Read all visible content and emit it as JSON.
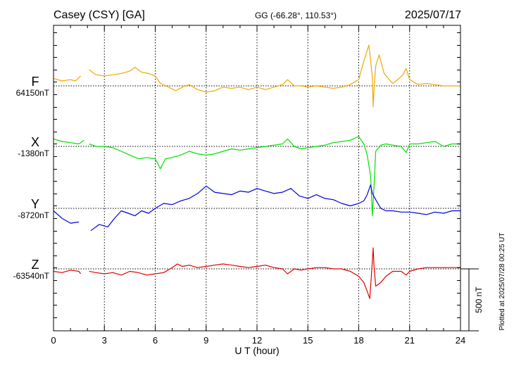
{
  "chart_data": {
    "type": "line",
    "station": "Casey (CSY)  [GA]",
    "coords": "GG (-66.28°, 110.53°)",
    "date": "2025/07/17",
    "xlabel": "U T (hour)",
    "xlim": [
      0,
      24
    ],
    "xticks": [
      "0",
      "3",
      "6",
      "9",
      "12",
      "15",
      "18",
      "21",
      "24"
    ],
    "plotted_note": "Plotted at 2025/07/28 00:25 UT",
    "scale_label": "500 nT",
    "scale_nT": 500,
    "series": [
      {
        "name": "F",
        "baseline_label": "64150nT",
        "baseline_nT": 64150,
        "color": "#f0a800",
        "points": [
          [
            0,
            64210
          ],
          [
            0.5,
            64190
          ],
          [
            1.0,
            64200
          ],
          [
            1.3,
            64190
          ],
          [
            1.6,
            64230
          ],
          null,
          [
            2.1,
            64280
          ],
          [
            2.5,
            64240
          ],
          [
            3.0,
            64230
          ],
          [
            3.5,
            64240
          ],
          [
            4.0,
            64250
          ],
          [
            4.5,
            64270
          ],
          [
            4.8,
            64300
          ],
          [
            5.2,
            64260
          ],
          [
            5.6,
            64250
          ],
          [
            6.0,
            64230
          ],
          [
            6.3,
            64170
          ],
          [
            6.8,
            64140
          ],
          [
            7.2,
            64110
          ],
          [
            7.6,
            64140
          ],
          [
            8.0,
            64160
          ],
          [
            8.5,
            64120
          ],
          [
            9.0,
            64100
          ],
          [
            9.5,
            64110
          ],
          [
            10.0,
            64140
          ],
          [
            10.5,
            64130
          ],
          [
            11.0,
            64140
          ],
          [
            11.5,
            64120
          ],
          [
            12.0,
            64140
          ],
          [
            12.5,
            64120
          ],
          [
            13.0,
            64140
          ],
          [
            13.5,
            64160
          ],
          [
            13.8,
            64200
          ],
          [
            14.2,
            64150
          ],
          [
            14.6,
            64150
          ],
          [
            15.0,
            64140
          ],
          [
            15.5,
            64150
          ],
          [
            16.0,
            64140
          ],
          [
            16.5,
            64130
          ],
          [
            17.0,
            64140
          ],
          [
            17.5,
            64160
          ],
          [
            18.0,
            64200
          ],
          [
            18.3,
            64350
          ],
          [
            18.6,
            64480
          ],
          [
            18.8,
            64220
          ],
          [
            18.85,
            63980
          ],
          [
            18.9,
            64120
          ],
          [
            19.0,
            64310
          ],
          [
            19.2,
            64400
          ],
          [
            19.5,
            64250
          ],
          [
            19.8,
            64200
          ],
          [
            20.0,
            64170
          ],
          [
            20.3,
            64200
          ],
          [
            20.6,
            64240
          ],
          [
            20.8,
            64290
          ],
          [
            21.0,
            64200
          ],
          [
            21.5,
            64160
          ],
          [
            22.0,
            64170
          ],
          [
            22.5,
            64160
          ],
          [
            23.0,
            64150
          ],
          [
            23.5,
            64150
          ],
          [
            24.0,
            64150
          ]
        ]
      },
      {
        "name": "X",
        "baseline_label": "-1380nT",
        "baseline_nT": -1380,
        "color": "#00e000",
        "points": [
          [
            0,
            -1320
          ],
          [
            0.5,
            -1340
          ],
          [
            1.0,
            -1350
          ],
          [
            1.5,
            -1360
          ],
          [
            1.8,
            -1330
          ],
          null,
          [
            2.1,
            -1360
          ],
          [
            2.5,
            -1380
          ],
          [
            3.0,
            -1380
          ],
          [
            3.5,
            -1390
          ],
          [
            4.0,
            -1420
          ],
          [
            4.5,
            -1450
          ],
          [
            5.0,
            -1480
          ],
          [
            5.5,
            -1470
          ],
          [
            6.0,
            -1480
          ],
          [
            6.3,
            -1560
          ],
          [
            6.6,
            -1480
          ],
          [
            7.0,
            -1470
          ],
          [
            7.5,
            -1450
          ],
          [
            8.0,
            -1420
          ],
          [
            8.5,
            -1440
          ],
          [
            9.0,
            -1450
          ],
          [
            9.5,
            -1440
          ],
          [
            10.0,
            -1420
          ],
          [
            10.5,
            -1400
          ],
          [
            11.0,
            -1410
          ],
          [
            11.5,
            -1400
          ],
          [
            12.0,
            -1390
          ],
          [
            12.5,
            -1380
          ],
          [
            13.0,
            -1370
          ],
          [
            13.5,
            -1360
          ],
          [
            13.8,
            -1320
          ],
          [
            14.2,
            -1380
          ],
          [
            14.6,
            -1400
          ],
          [
            15.0,
            -1390
          ],
          [
            15.5,
            -1380
          ],
          [
            16.0,
            -1370
          ],
          [
            16.5,
            -1350
          ],
          [
            17.0,
            -1340
          ],
          [
            17.5,
            -1330
          ],
          [
            18.0,
            -1300
          ],
          [
            18.3,
            -1360
          ],
          [
            18.5,
            -1450
          ],
          [
            18.7,
            -1620
          ],
          [
            18.8,
            -1940
          ],
          [
            18.9,
            -1700
          ],
          [
            19.0,
            -1420
          ],
          [
            19.3,
            -1370
          ],
          [
            19.6,
            -1360
          ],
          [
            20.0,
            -1370
          ],
          [
            20.5,
            -1380
          ],
          [
            20.8,
            -1430
          ],
          [
            21.0,
            -1360
          ],
          [
            21.5,
            -1360
          ],
          [
            22.0,
            -1350
          ],
          [
            22.5,
            -1340
          ],
          [
            23.0,
            -1380
          ],
          [
            23.5,
            -1360
          ],
          [
            24.0,
            -1360
          ]
        ]
      },
      {
        "name": "Y",
        "baseline_label": "-8720nT",
        "baseline_nT": -8720,
        "color": "#0000e0",
        "points": [
          [
            0,
            -8740
          ],
          [
            0.5,
            -8800
          ],
          [
            1.0,
            -8840
          ],
          [
            1.5,
            -8830
          ],
          null,
          [
            2.2,
            -8900
          ],
          [
            2.7,
            -8850
          ],
          [
            3.2,
            -8870
          ],
          [
            3.6,
            -8800
          ],
          [
            4.0,
            -8740
          ],
          [
            4.4,
            -8760
          ],
          [
            4.8,
            -8780
          ],
          [
            5.2,
            -8740
          ],
          [
            5.6,
            -8760
          ],
          [
            6.0,
            -8720
          ],
          [
            6.5,
            -8680
          ],
          [
            7.0,
            -8690
          ],
          [
            7.5,
            -8660
          ],
          [
            8.0,
            -8640
          ],
          [
            8.5,
            -8600
          ],
          [
            9.0,
            -8540
          ],
          [
            9.5,
            -8590
          ],
          [
            10.0,
            -8600
          ],
          [
            10.5,
            -8610
          ],
          [
            11.0,
            -8580
          ],
          [
            11.5,
            -8590
          ],
          [
            12.0,
            -8560
          ],
          [
            12.5,
            -8580
          ],
          [
            13.0,
            -8600
          ],
          [
            13.5,
            -8590
          ],
          [
            14.0,
            -8560
          ],
          [
            14.5,
            -8620
          ],
          [
            15.0,
            -8640
          ],
          [
            15.5,
            -8610
          ],
          [
            16.0,
            -8640
          ],
          [
            16.5,
            -8650
          ],
          [
            17.0,
            -8680
          ],
          [
            17.5,
            -8700
          ],
          [
            18.0,
            -8680
          ],
          [
            18.3,
            -8660
          ],
          [
            18.5,
            -8610
          ],
          [
            18.7,
            -8530
          ],
          [
            18.8,
            -8600
          ],
          [
            19.0,
            -8650
          ],
          [
            19.3,
            -8720
          ],
          [
            19.6,
            -8740
          ],
          [
            20.0,
            -8740
          ],
          [
            20.5,
            -8750
          ],
          [
            21.0,
            -8750
          ],
          [
            21.5,
            -8760
          ],
          [
            22.0,
            -8770
          ],
          [
            22.5,
            -8750
          ],
          [
            23.0,
            -8760
          ],
          [
            23.5,
            -8740
          ],
          [
            24.0,
            -8740
          ]
        ]
      },
      {
        "name": "Z",
        "baseline_label": "-63540nT",
        "baseline_nT": -63540,
        "color": "#e00000",
        "points": [
          [
            0,
            -63560
          ],
          [
            0.5,
            -63570
          ],
          [
            1.0,
            -63550
          ],
          [
            1.5,
            -63560
          ],
          [
            1.6,
            -63580
          ],
          null,
          [
            2.1,
            -63560
          ],
          [
            2.5,
            -63570
          ],
          [
            3.0,
            -63580
          ],
          [
            3.5,
            -63570
          ],
          [
            4.0,
            -63590
          ],
          [
            4.5,
            -63560
          ],
          [
            5.0,
            -63570
          ],
          [
            5.5,
            -63590
          ],
          [
            6.0,
            -63580
          ],
          [
            6.5,
            -63570
          ],
          [
            7.0,
            -63530
          ],
          [
            7.3,
            -63500
          ],
          [
            7.6,
            -63520
          ],
          [
            8.0,
            -63510
          ],
          [
            8.5,
            -63530
          ],
          [
            9.0,
            -63520
          ],
          [
            9.5,
            -63510
          ],
          [
            10.0,
            -63500
          ],
          [
            10.5,
            -63510
          ],
          [
            11.0,
            -63520
          ],
          [
            11.5,
            -63530
          ],
          [
            12.0,
            -63520
          ],
          [
            12.5,
            -63510
          ],
          [
            13.0,
            -63530
          ],
          [
            13.5,
            -63540
          ],
          [
            13.8,
            -63580
          ],
          [
            14.2,
            -63540
          ],
          [
            14.6,
            -63550
          ],
          [
            15.0,
            -63540
          ],
          [
            15.5,
            -63530
          ],
          [
            16.0,
            -63530
          ],
          [
            16.5,
            -63540
          ],
          [
            17.0,
            -63540
          ],
          [
            17.5,
            -63560
          ],
          [
            18.0,
            -63600
          ],
          [
            18.3,
            -63650
          ],
          [
            18.5,
            -63720
          ],
          [
            18.65,
            -63780
          ],
          [
            18.8,
            -63480
          ],
          [
            18.85,
            -63370
          ],
          [
            18.9,
            -63520
          ],
          [
            19.0,
            -63680
          ],
          [
            19.3,
            -63650
          ],
          [
            19.6,
            -63600
          ],
          [
            20.0,
            -63560
          ],
          [
            20.5,
            -63560
          ],
          [
            20.8,
            -63590
          ],
          [
            21.0,
            -63560
          ],
          [
            21.5,
            -63540
          ],
          [
            22.0,
            -63530
          ],
          [
            22.5,
            -63530
          ],
          [
            23.0,
            -63530
          ],
          [
            23.5,
            -63530
          ],
          [
            24.0,
            -63530
          ]
        ]
      }
    ]
  }
}
